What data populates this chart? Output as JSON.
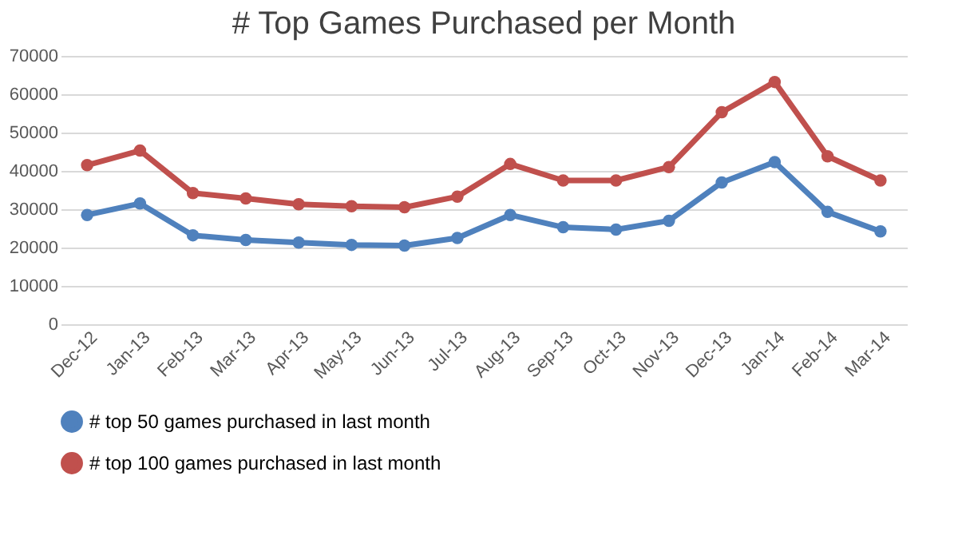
{
  "chart_data": {
    "type": "line",
    "title": "# Top Games Purchased per Month",
    "categories": [
      "Dec-12",
      "Jan-13",
      "Feb-13",
      "Mar-13",
      "Apr-13",
      "May-13",
      "Jun-13",
      "Jul-13",
      "Aug-13",
      "Sep-13",
      "Oct-13",
      "Nov-13",
      "Dec-13",
      "Jan-14",
      "Feb-14",
      "Mar-14"
    ],
    "series": [
      {
        "name": "# top 50 games purchased in last month",
        "color": "#4f81bd",
        "values": [
          28500,
          31500,
          23200,
          22000,
          21300,
          20700,
          20500,
          22500,
          28500,
          25300,
          24700,
          27000,
          37000,
          42300,
          29300,
          24200
        ]
      },
      {
        "name": "# top 100 games purchased in last month",
        "color": "#c0504d",
        "values": [
          41500,
          45300,
          34200,
          32800,
          31300,
          30800,
          30500,
          33300,
          41800,
          37500,
          37500,
          41000,
          55300,
          63200,
          43800,
          37500
        ]
      }
    ],
    "ylim": [
      0,
      70000
    ],
    "yticks": [
      0,
      10000,
      20000,
      30000,
      40000,
      50000,
      60000,
      70000
    ],
    "grid": "y",
    "legend": "bottom",
    "marker": "circle",
    "line_style": "solid"
  }
}
